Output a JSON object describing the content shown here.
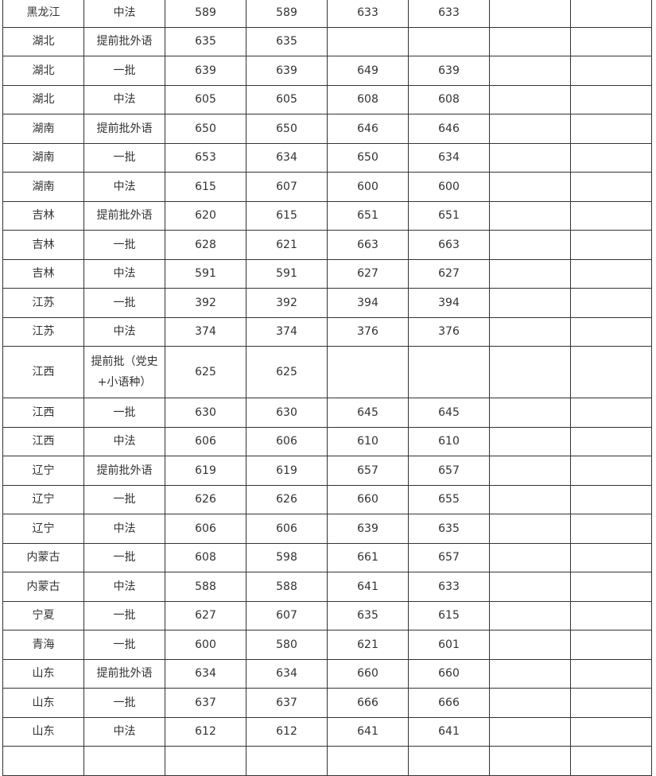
{
  "rows": [
    [
      "黑龙江",
      "中法",
      "589",
      "589",
      "633",
      "633",
      "",
      ""
    ],
    [
      "湖北",
      "提前批外语",
      "635",
      "635",
      "",
      "",
      "",
      ""
    ],
    [
      "湖北",
      "一批",
      "639",
      "639",
      "649",
      "639",
      "",
      ""
    ],
    [
      "湖北",
      "中法",
      "605",
      "605",
      "608",
      "608",
      "",
      ""
    ],
    [
      "湖南",
      "提前批外语",
      "650",
      "650",
      "646",
      "646",
      "",
      ""
    ],
    [
      "湖南",
      "一批",
      "653",
      "634",
      "650",
      "634",
      "",
      ""
    ],
    [
      "湖南",
      "中法",
      "615",
      "607",
      "600",
      "600",
      "",
      ""
    ],
    [
      "吉林",
      "提前批外语",
      "620",
      "615",
      "651",
      "651",
      "",
      ""
    ],
    [
      "吉林",
      "一批",
      "628",
      "621",
      "663",
      "663",
      "",
      ""
    ],
    [
      "吉林",
      "中法",
      "591",
      "591",
      "627",
      "627",
      "",
      ""
    ],
    [
      "江苏",
      "一批",
      "392",
      "392",
      "394",
      "394",
      "",
      ""
    ],
    [
      "江苏",
      "中法",
      "374",
      "374",
      "376",
      "376",
      "",
      ""
    ],
    [
      "江西",
      "提前批（党史+小语种）",
      "625",
      "625",
      "",
      "",
      "",
      ""
    ],
    [
      "江西",
      "一批",
      "630",
      "630",
      "645",
      "645",
      "",
      ""
    ],
    [
      "江西",
      "中法",
      "606",
      "606",
      "610",
      "610",
      "",
      ""
    ],
    [
      "辽宁",
      "提前批外语",
      "619",
      "619",
      "657",
      "657",
      "",
      ""
    ],
    [
      "辽宁",
      "一批",
      "626",
      "626",
      "660",
      "655",
      "",
      ""
    ],
    [
      "辽宁",
      "中法",
      "606",
      "606",
      "639",
      "635",
      "",
      ""
    ],
    [
      "内蒙古",
      "一批",
      "608",
      "598",
      "661",
      "657",
      "",
      ""
    ],
    [
      "内蒙古",
      "中法",
      "588",
      "588",
      "641",
      "633",
      "",
      ""
    ],
    [
      "宁夏",
      "一批",
      "627",
      "607",
      "635",
      "615",
      "",
      ""
    ],
    [
      "青海",
      "一批",
      "600",
      "580",
      "621",
      "601",
      "",
      ""
    ],
    [
      "山东",
      "提前批外语",
      "634",
      "634",
      "660",
      "660",
      "",
      ""
    ],
    [
      "山东",
      "一批",
      "637",
      "637",
      "666",
      "666",
      "",
      ""
    ],
    [
      "山东",
      "中法",
      "612",
      "612",
      "641",
      "641",
      "",
      ""
    ],
    [
      "",
      "",
      "",
      "",
      "",
      "",
      "",
      ""
    ]
  ]
}
